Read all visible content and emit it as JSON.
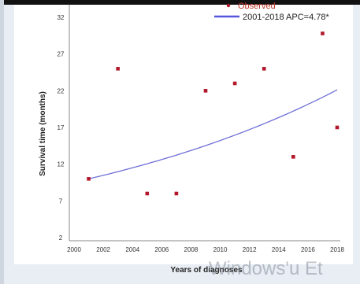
{
  "chart_data": {
    "type": "scatter",
    "xlabel": "Years of diagnoses",
    "ylabel": "Survival time (months)",
    "xlim": [
      2000,
      2018
    ],
    "ylim": [
      2,
      32
    ],
    "x_ticks": [
      2000,
      2002,
      2004,
      2006,
      2008,
      2010,
      2012,
      2014,
      2016,
      2018
    ],
    "y_ticks": [
      2,
      7,
      12,
      17,
      22,
      27,
      32
    ],
    "grid": false,
    "legend_position": "top-right",
    "series": [
      {
        "name": "Observed",
        "kind": "scatter",
        "color": "#b2182b",
        "points": [
          {
            "x": 2001,
            "y": 10.0
          },
          {
            "x": 2003,
            "y": 25.0
          },
          {
            "x": 2005,
            "y": 8.0
          },
          {
            "x": 2007,
            "y": 8.0
          },
          {
            "x": 2009,
            "y": 22.0
          },
          {
            "x": 2011,
            "y": 23.0
          },
          {
            "x": 2013,
            "y": 25.0
          },
          {
            "x": 2015,
            "y": 13.0
          },
          {
            "x": 2017,
            "y": 29.8
          },
          {
            "x": 2018,
            "y": 17.0
          }
        ]
      },
      {
        "name": "2001-2018 APC=4.78*",
        "kind": "line",
        "color": "#6f6fd6",
        "apc_percent": 4.78,
        "x_range": [
          2001,
          2018
        ],
        "start_y": 10.0,
        "end_y": 22.2
      }
    ]
  },
  "watermark": {
    "text": "Windows'u Et"
  }
}
